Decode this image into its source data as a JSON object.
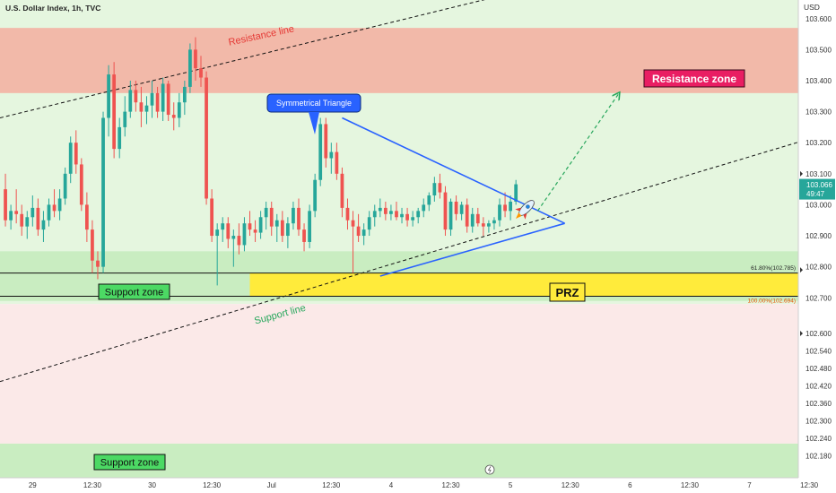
{
  "header": {
    "title": "U.S. Dollar Index, 1h, TVC",
    "currency": "USD"
  },
  "chart_data": {
    "type": "candlestick",
    "ylim": [
      102.12,
      103.66
    ],
    "x_index_range": [
      0,
      147
    ],
    "y_ticks": [
      "103.600",
      "103.500",
      "103.400",
      "103.300",
      "103.200",
      "103.100",
      "103.000",
      "102.900",
      "102.800",
      "102.700",
      "102.600",
      "102.540",
      "102.480",
      "102.420",
      "102.360",
      "102.300",
      "102.240",
      "102.180"
    ],
    "x_ticks": [
      {
        "label": "29",
        "x": 6
      },
      {
        "label": "12:30",
        "x": 17
      },
      {
        "label": "30",
        "x": 28
      },
      {
        "label": "12:30",
        "x": 39
      },
      {
        "label": "Jul",
        "x": 50
      },
      {
        "label": "12:30",
        "x": 61
      },
      {
        "label": "4",
        "x": 72
      },
      {
        "label": "12:30",
        "x": 83
      },
      {
        "label": "5",
        "x": 94
      },
      {
        "label": "12:30",
        "x": 105
      },
      {
        "label": "6",
        "x": 116
      },
      {
        "label": "12:30",
        "x": 127
      },
      {
        "label": "7",
        "x": 138
      },
      {
        "label": "12:30",
        "x": 149
      }
    ],
    "last_price": {
      "value": 103.066,
      "label": "103.066",
      "countdown": "49:47"
    },
    "candles": [
      [
        103.05,
        103.1,
        102.93,
        102.95
      ],
      [
        102.95,
        103.0,
        102.92,
        102.98
      ],
      [
        102.98,
        103.05,
        102.94,
        102.97
      ],
      [
        102.97,
        103.0,
        102.9,
        102.93
      ],
      [
        102.93,
        102.98,
        102.89,
        102.96
      ],
      [
        102.96,
        103.03,
        102.93,
        102.99
      ],
      [
        102.99,
        103.02,
        102.9,
        102.92
      ],
      [
        102.92,
        102.98,
        102.88,
        102.95
      ],
      [
        102.95,
        103.02,
        102.93,
        103.0
      ],
      [
        103.0,
        103.05,
        102.96,
        102.98
      ],
      [
        102.98,
        103.05,
        102.95,
        103.02
      ],
      [
        103.02,
        103.12,
        103.0,
        103.1
      ],
      [
        103.1,
        103.22,
        103.07,
        103.2
      ],
      [
        103.2,
        103.24,
        103.1,
        103.13
      ],
      [
        103.13,
        103.15,
        102.98,
        103.0
      ],
      [
        103.0,
        103.04,
        102.88,
        102.92
      ],
      [
        102.92,
        102.95,
        102.78,
        102.82
      ],
      [
        102.82,
        102.85,
        102.76,
        102.8
      ],
      [
        102.8,
        103.3,
        102.78,
        103.28
      ],
      [
        103.28,
        103.45,
        103.22,
        103.42
      ],
      [
        103.42,
        103.46,
        103.15,
        103.18
      ],
      [
        103.18,
        103.28,
        103.15,
        103.25
      ],
      [
        103.25,
        103.35,
        103.22,
        103.3
      ],
      [
        103.3,
        103.4,
        103.28,
        103.37
      ],
      [
        103.37,
        103.4,
        103.3,
        103.33
      ],
      [
        103.33,
        103.38,
        103.25,
        103.3
      ],
      [
        103.3,
        103.35,
        103.26,
        103.32
      ],
      [
        103.32,
        103.4,
        103.28,
        103.36
      ],
      [
        103.36,
        103.38,
        103.28,
        103.3
      ],
      [
        103.3,
        103.41,
        103.27,
        103.39
      ],
      [
        103.39,
        103.4,
        103.27,
        103.29
      ],
      [
        103.29,
        103.33,
        103.24,
        103.28
      ],
      [
        103.28,
        103.36,
        103.25,
        103.33
      ],
      [
        103.33,
        103.4,
        103.29,
        103.38
      ],
      [
        103.38,
        103.52,
        103.36,
        103.5
      ],
      [
        103.5,
        103.54,
        103.4,
        103.44
      ],
      [
        103.44,
        103.48,
        103.38,
        103.41
      ],
      [
        103.41,
        103.43,
        103.0,
        103.02
      ],
      [
        103.02,
        103.05,
        102.88,
        102.9
      ],
      [
        102.9,
        102.94,
        102.74,
        102.92
      ],
      [
        102.92,
        102.96,
        102.88,
        102.94
      ],
      [
        102.94,
        102.96,
        102.86,
        102.89
      ],
      [
        102.89,
        102.92,
        102.8,
        102.9
      ],
      [
        102.9,
        102.94,
        102.84,
        102.87
      ],
      [
        102.87,
        102.96,
        102.85,
        102.94
      ],
      [
        102.94,
        102.98,
        102.9,
        102.92
      ],
      [
        102.92,
        102.95,
        102.88,
        102.91
      ],
      [
        102.91,
        102.98,
        102.89,
        102.96
      ],
      [
        102.96,
        103.01,
        102.92,
        102.99
      ],
      [
        102.99,
        103.01,
        102.9,
        102.93
      ],
      [
        102.93,
        102.97,
        102.88,
        102.95
      ],
      [
        102.95,
        102.98,
        102.88,
        102.9
      ],
      [
        102.9,
        102.96,
        102.86,
        102.94
      ],
      [
        102.94,
        103.01,
        102.92,
        102.99
      ],
      [
        102.99,
        103.02,
        102.9,
        102.92
      ],
      [
        102.92,
        102.94,
        102.85,
        102.88
      ],
      [
        102.88,
        103.0,
        102.86,
        102.98
      ],
      [
        102.98,
        103.1,
        102.96,
        103.08
      ],
      [
        103.08,
        103.28,
        103.06,
        103.26
      ],
      [
        103.26,
        103.28,
        103.12,
        103.15
      ],
      [
        103.15,
        103.2,
        103.1,
        103.17
      ],
      [
        103.17,
        103.2,
        103.08,
        103.1
      ],
      [
        103.1,
        103.12,
        102.96,
        102.99
      ],
      [
        102.99,
        103.02,
        102.92,
        102.95
      ],
      [
        102.95,
        102.98,
        102.78,
        102.93
      ],
      [
        102.93,
        102.97,
        102.88,
        102.9
      ],
      [
        102.9,
        102.94,
        102.87,
        102.92
      ],
      [
        102.92,
        102.98,
        102.9,
        102.96
      ],
      [
        102.96,
        103.0,
        102.93,
        102.98
      ],
      [
        102.98,
        103.02,
        102.96,
        102.99
      ],
      [
        102.99,
        103.01,
        102.95,
        102.97
      ],
      [
        102.97,
        103.0,
        102.95,
        102.98
      ],
      [
        102.98,
        103.01,
        102.95,
        102.96
      ],
      [
        102.96,
        102.99,
        102.94,
        102.97
      ],
      [
        102.97,
        102.99,
        102.93,
        102.95
      ],
      [
        102.95,
        102.98,
        102.93,
        102.96
      ],
      [
        102.96,
        102.99,
        102.94,
        102.98
      ],
      [
        102.98,
        103.02,
        102.96,
        103.0
      ],
      [
        103.0,
        103.04,
        102.98,
        103.03
      ],
      [
        103.03,
        103.09,
        103.01,
        103.07
      ],
      [
        103.07,
        103.1,
        103.02,
        103.04
      ],
      [
        103.04,
        103.06,
        102.9,
        102.92
      ],
      [
        102.92,
        103.02,
        102.9,
        103.01
      ],
      [
        103.01,
        103.03,
        102.95,
        102.97
      ],
      [
        102.97,
        103.01,
        102.95,
        103.0
      ],
      [
        103.0,
        103.02,
        102.91,
        102.93
      ],
      [
        102.93,
        102.99,
        102.91,
        102.97
      ],
      [
        102.97,
        102.99,
        102.93,
        102.94
      ],
      [
        102.94,
        102.96,
        102.9,
        102.93
      ],
      [
        102.93,
        102.95,
        102.91,
        102.94
      ],
      [
        102.94,
        102.96,
        102.92,
        102.95
      ],
      [
        102.95,
        103.02,
        102.93,
        103.0
      ],
      [
        103.0,
        103.04,
        102.96,
        102.98
      ],
      [
        102.98,
        103.03,
        102.95,
        103.01
      ],
      [
        103.01,
        103.08,
        103.0,
        103.066
      ]
    ],
    "zones": [
      {
        "name": "resistance-zone",
        "lo": 103.36,
        "hi": 103.57,
        "color": "#f2b9a9"
      },
      {
        "name": "support-zone-upper",
        "lo": 102.69,
        "hi": 102.85,
        "color": "#c9edc1"
      },
      {
        "name": "prz-band",
        "lo": 102.705,
        "hi": 102.78,
        "color": "#ffeb3b"
      },
      {
        "name": "support-zone-lower",
        "lo": 102.12,
        "hi": 102.23,
        "color": "#c9edc1"
      }
    ],
    "channel": {
      "resistance": {
        "from": [
          0,
          103.28
        ],
        "to": [
          103,
          103.72
        ]
      },
      "support": {
        "from": [
          0,
          102.43
        ],
        "to": [
          160,
          103.27
        ]
      }
    },
    "triangle": {
      "upper": [
        [
          63,
          103.28
        ],
        [
          104,
          102.94
        ]
      ],
      "lower": [
        [
          70,
          102.77
        ],
        [
          104,
          102.94
        ]
      ]
    },
    "projection": {
      "from": [
        99,
        102.98
      ],
      "to": [
        114,
        103.36
      ]
    },
    "fib_levels": [
      {
        "label": "61.80%(102.785)",
        "value": 102.785,
        "color": "#222"
      },
      {
        "label": "100.00%(102.694)",
        "value": 102.694,
        "color": "#e65100"
      }
    ],
    "colors": {
      "up": "#26a69a",
      "down": "#ef5350",
      "triangle": "#2962ff",
      "projection": "#26a65b",
      "bg_top": "#e5f6df",
      "bg_bottom": "#fbe9e8"
    }
  },
  "annotations": {
    "resistance_line": "Resistance line",
    "support_line": "Support line",
    "symmetrical_triangle": "Symmetrical Triangle",
    "resistance_zone": "Resistance zone",
    "support_zone_1": "Support zone",
    "support_zone_2": "Support zone",
    "prz": "PRZ",
    "rocket_icon": "rocket-icon"
  }
}
